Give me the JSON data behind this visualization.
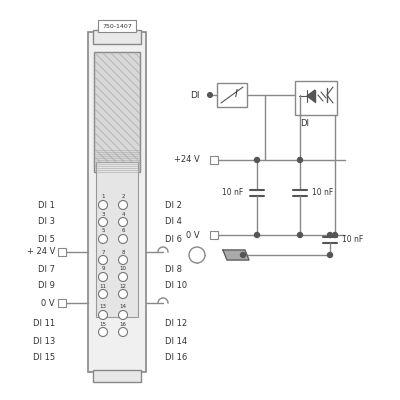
{
  "bg_color": "#f5f5f5",
  "line_color": "#888888",
  "dark_color": "#555555",
  "text_color": "#333333",
  "module_label": "750-1407",
  "left_labels": [
    "DI 1",
    "DI 3",
    "DI 5",
    "+ 24 V",
    "DI 7",
    "DI 9",
    "0 V",
    "DI 11",
    "DI 13",
    "DI 15"
  ],
  "right_labels": [
    "DI 2",
    "DI 4",
    "DI 6",
    "",
    "DI 8",
    "DI 10",
    "",
    "DI 12",
    "DI 14",
    "DI 16"
  ],
  "pin_numbers_left": [
    "1",
    "3",
    "5",
    "7",
    "9",
    "11",
    "13",
    "15"
  ],
  "pin_numbers_right": [
    "2",
    "4",
    "6",
    "8",
    "10",
    "12",
    "14",
    "16"
  ]
}
